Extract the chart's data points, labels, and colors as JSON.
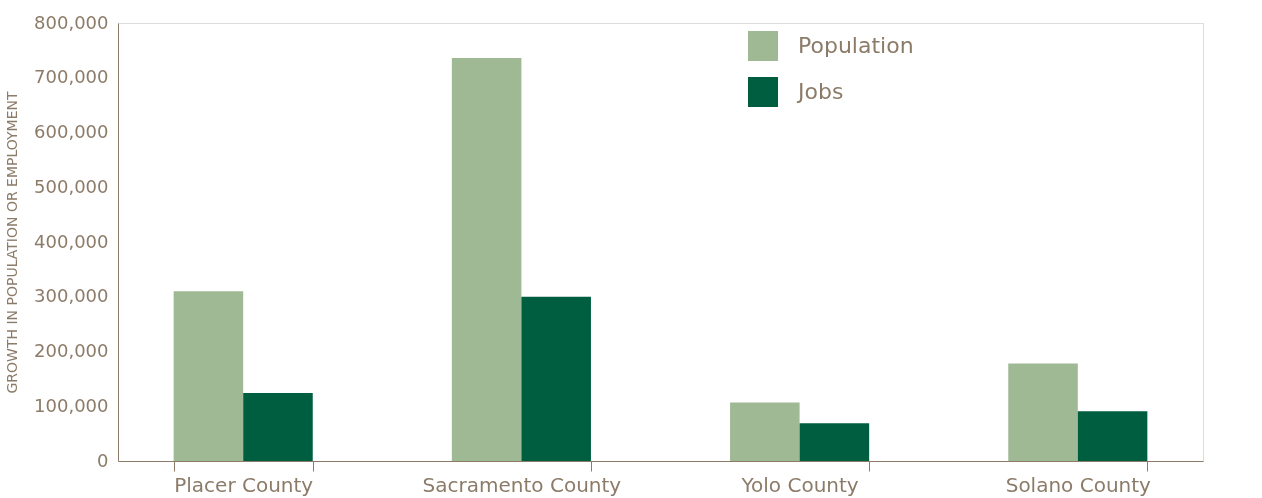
{
  "chart_data": {
    "type": "bar",
    "ylabel": "GROWTH IN POPULATION OR EMPLOYMENT",
    "categories": [
      "Placer County",
      "Sacramento County",
      "Yolo County",
      "Solano County"
    ],
    "series": [
      {
        "name": "Population",
        "color": "#a0b995",
        "values": [
          310000,
          736000,
          107000,
          178000
        ]
      },
      {
        "name": "Jobs",
        "color": "#005e40",
        "values": [
          124000,
          300000,
          69000,
          91000
        ]
      }
    ],
    "ylim": [
      0,
      800000
    ],
    "yticks": [
      0,
      {
        "value": 100000,
        "label": "100,000"
      },
      {
        "value": 200000,
        "label": "200,000"
      },
      {
        "value": 300000,
        "label": "300,000"
      },
      {
        "value": 400000,
        "label": "400,000"
      },
      {
        "value": 500000,
        "label": "500,000"
      },
      {
        "value": 600000,
        "label": "600,000"
      },
      {
        "value": 700000,
        "label": "700,000"
      },
      {
        "value": 800000,
        "label": "800,000"
      }
    ],
    "grid": false,
    "legend": "top"
  }
}
